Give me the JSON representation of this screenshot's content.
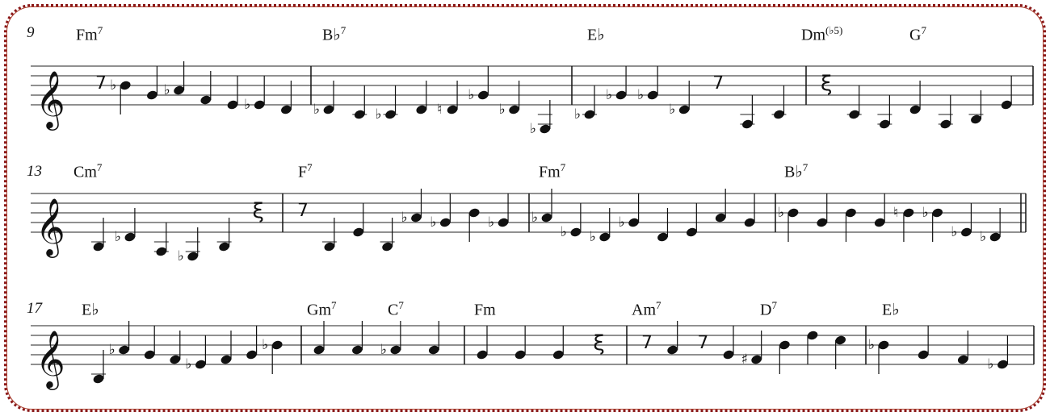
{
  "border_color": "#8b1a1a",
  "systems": [
    {
      "measure_number": "9",
      "chords": [
        {
          "root": "Fm",
          "ext": "7"
        },
        {
          "root": "B♭",
          "ext": "7"
        },
        {
          "root": "E♭",
          "ext": ""
        },
        {
          "root": "Dm",
          "ext": "(♭5)"
        },
        {
          "root": "G",
          "ext": "7"
        }
      ],
      "measures": [
        [
          "r8",
          "Bb4",
          "G4",
          "Ab4",
          "F4",
          "E4",
          "Eb4",
          "D4"
        ],
        [
          "Db4",
          "C4",
          "Cb4",
          "D4",
          "Dn4",
          "Gb4",
          "Db4",
          "Gb3"
        ],
        [
          "Cb4",
          "Gb4",
          "Gb4",
          "Db4",
          "r8",
          "A3",
          "C4"
        ],
        [
          "r4",
          "C4",
          "A3",
          "D4",
          "A3",
          "B3",
          "E4"
        ]
      ]
    },
    {
      "measure_number": "13",
      "chords": [
        {
          "root": "Cm",
          "ext": "7"
        },
        {
          "root": "F",
          "ext": "7"
        },
        {
          "root": "Fm",
          "ext": "7"
        },
        {
          "root": "B♭",
          "ext": "7"
        }
      ],
      "measures": [
        [
          "B3",
          "Db4",
          "A3",
          "Gb3",
          "B3",
          "r4"
        ],
        [
          "r8",
          "B3",
          "E4",
          "B3",
          "Ab4",
          "Gb4",
          "B4",
          "Gb4"
        ],
        [
          "Ab4",
          "Eb4",
          "Db4",
          "Gb4",
          "D4",
          "E4",
          "A4",
          "G4"
        ],
        [
          "Bb4",
          "G4",
          "B4",
          "G4",
          "Bn4",
          "Bb4",
          "Eb4",
          "Db4"
        ]
      ]
    },
    {
      "measure_number": "17",
      "chords": [
        {
          "root": "E♭",
          "ext": ""
        },
        {
          "root": "Gm",
          "ext": "7"
        },
        {
          "root": "C",
          "ext": "7"
        },
        {
          "root": "Fm",
          "ext": ""
        },
        {
          "root": "Am",
          "ext": "7"
        },
        {
          "root": "D",
          "ext": "7"
        },
        {
          "root": "E♭",
          "ext": ""
        }
      ],
      "measures": [
        [
          "B3",
          "Ab4",
          "G4",
          "F4",
          "Eb4",
          "F4",
          "G4",
          "Bb4"
        ],
        [
          "A4",
          "A4",
          "Ab4",
          "A4"
        ],
        [
          "G4",
          "G4",
          "G4",
          "r4"
        ],
        [
          "r8",
          "A4",
          "r8",
          "G4",
          "F#4",
          "B4",
          "D5",
          "C5"
        ],
        [
          "Bb4",
          "G4",
          "F4",
          "Eb4"
        ]
      ]
    }
  ]
}
